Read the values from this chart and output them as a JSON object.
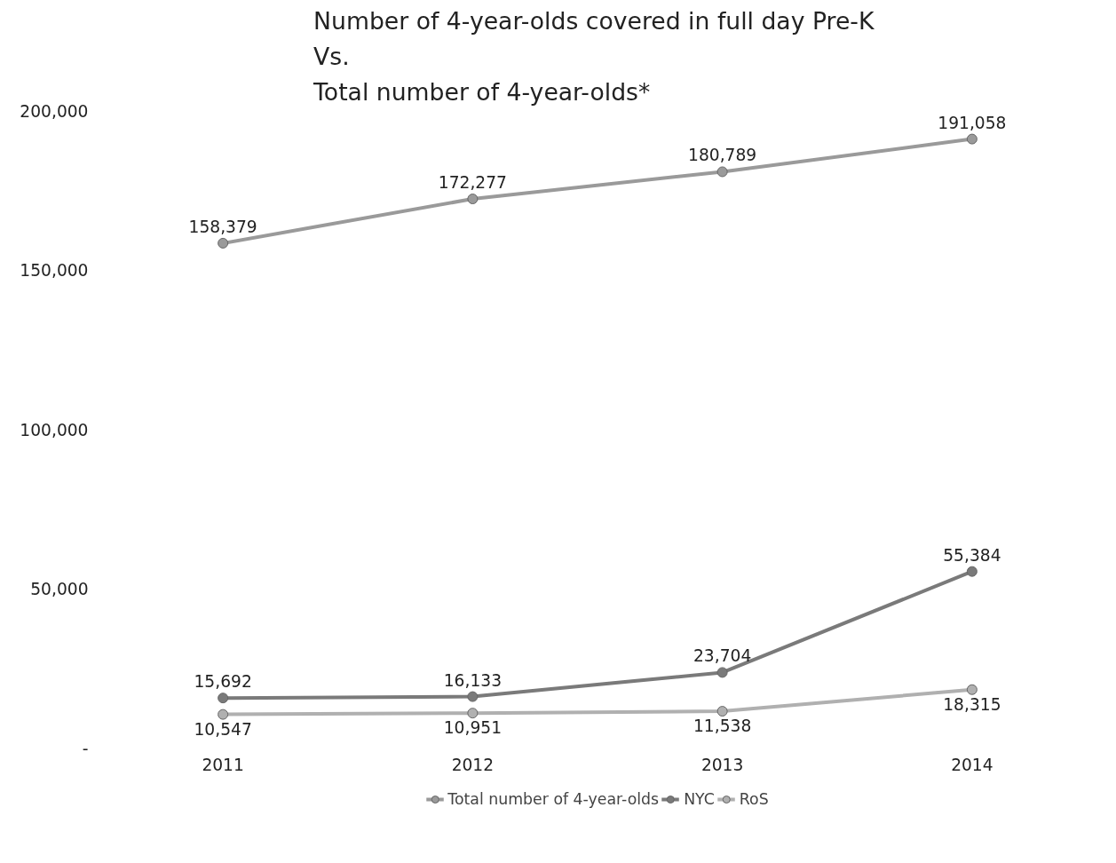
{
  "chart_data": {
    "type": "line",
    "title": "Number of 4-year-olds covered in full day  Pre-K\nVs.\nTotal number of 4-year-olds*",
    "categories": [
      "2011",
      "2012",
      "2013",
      "2014"
    ],
    "series": [
      {
        "name": "Total number of 4-year-olds",
        "color": "#9a9a9a",
        "values": [
          158379,
          172277,
          180789,
          191058
        ],
        "value_labels": [
          "158,379",
          "172,277",
          "180,789",
          "191,058"
        ]
      },
      {
        "name": "NYC",
        "color": "#7a7a7a",
        "values": [
          15692,
          16133,
          23704,
          55384
        ],
        "value_labels": [
          "15,692",
          "16,133",
          "23,704",
          "55,384"
        ]
      },
      {
        "name": "RoS",
        "color": "#b0b0b0",
        "values": [
          10547,
          10951,
          11538,
          18315
        ],
        "value_labels": [
          "10,547",
          "10,951",
          "11,538",
          "18,315"
        ]
      }
    ],
    "ylim": [
      0,
      200000
    ],
    "yticks": [
      {
        "value": 0,
        "label": "-"
      },
      {
        "value": 50000,
        "label": "50,000"
      },
      {
        "value": 100000,
        "label": "100,000"
      },
      {
        "value": 150000,
        "label": "150,000"
      },
      {
        "value": 200000,
        "label": "200,000"
      }
    ],
    "marker": "circle",
    "line_style": "solid",
    "grid": false,
    "legend": "bottom"
  }
}
